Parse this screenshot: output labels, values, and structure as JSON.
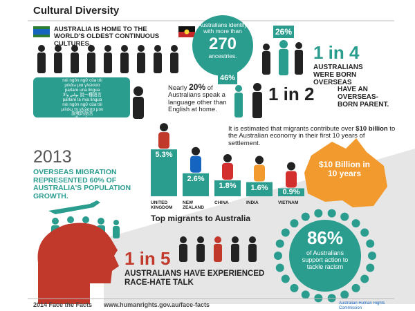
{
  "header": {
    "title": "Cultural Diversity"
  },
  "indigenous": {
    "text": "AUSTRALIA IS HOME TO THE WORLD'S OLDEST CONTINUOUS CULTURES."
  },
  "ancestries": {
    "before": "Australians identify with more than",
    "number": "270",
    "after": "ancestries."
  },
  "born_overseas": {
    "badge": "26%",
    "stat": "1 in 4",
    "text": "AUSTRALIANS WERE BORN OVERSEAS"
  },
  "overseas_parent": {
    "badge": "46%",
    "stat": "1 in 2",
    "text": "HAVE AN OVERSEAS-BORN PARENT."
  },
  "languages": {
    "bubble": [
      "nói ngôn ngữ của tôi",
      "μιλάω μια γλώσσα",
      "parlare una lingua",
      "بولنے والا 說一種語言",
      "parlare la mia lingua",
      "nói ngôn ngữ của tôi",
      "μιλάω τη γλώσσα μου",
      "說我的語言",
      "بولنے والا"
    ],
    "before": "Nearly ",
    "bold": "20%",
    "after": " of Australians speak a language other than English at home."
  },
  "migration": {
    "year": "2013",
    "text": "OVERSEAS MIGRATION REPRESENTED 60% OF AUSTRALIA'S POPULATION GROWTH."
  },
  "economy": {
    "before": "It is estimated that migrants contribute over ",
    "bold": "$10 billion",
    "after": " to the Australian economy in their first 10 years of settlement.",
    "map_text": "$10 Billion in 10 years"
  },
  "chart_data": {
    "type": "bar",
    "title": "Top migrants to Australia",
    "categories": [
      "UNITED KINGDOM",
      "NEW ZEALAND",
      "CHINA",
      "INDIA",
      "VIETNAM"
    ],
    "values": [
      5.3,
      2.6,
      1.8,
      1.6,
      0.9
    ],
    "value_labels": [
      "5.3%",
      "2.6%",
      "1.8%",
      "1.6%",
      "0.9%"
    ],
    "color": "#2a9d8f"
  },
  "race_hate": {
    "stat": "1 in 5",
    "text": "AUSTRALIANS HAVE EXPERIENCED RACE-HATE TALK"
  },
  "anti_racism": {
    "stat": "86%",
    "text": "of Australians support action to tackle racism"
  },
  "footer": {
    "left": "2014 Face the Facts",
    "url": "www.humanrights.gov.au/face-facts",
    "org": "Australian Human Rights Commission"
  }
}
